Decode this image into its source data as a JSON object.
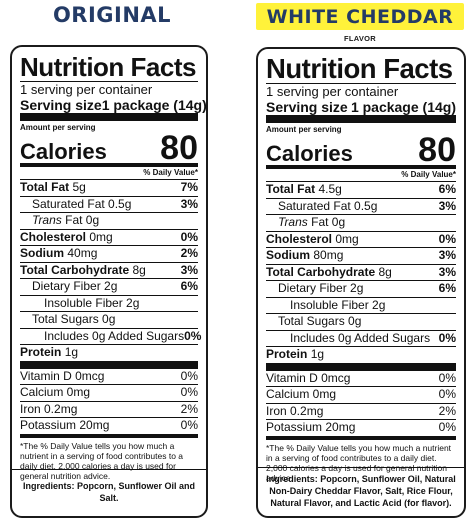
{
  "labels": [
    {
      "banner": "ORIGINAL",
      "title": "Nutrition Facts",
      "servings_line": "1 serving per container",
      "serving_size_label": "Serving size",
      "serving_size_value": "1 package (14g)",
      "amount_per_serving": "Amount per serving",
      "calories_label": "Calories",
      "calories_value": "80",
      "dv_header": "% Daily Value*",
      "total_fat_label": "Total Fat",
      "total_fat_amt": "5g",
      "total_fat_dv": "7%",
      "sat_fat_label": "Saturated Fat 0.5g",
      "sat_fat_dv": "3%",
      "trans_label": "Trans",
      "trans_rest": " Fat 0g",
      "chol_label": "Cholesterol",
      "chol_amt": "0mg",
      "chol_dv": "0%",
      "sodium_label": "Sodium",
      "sodium_amt": "40mg",
      "sodium_dv": "2%",
      "carb_label": "Total Carbohydrate",
      "carb_amt": "8g",
      "carb_dv": "3%",
      "fiber_label": "Dietary Fiber 2g",
      "fiber_dv": "6%",
      "insol_label": "Insoluble Fiber 2g",
      "sugars_label": "Total Sugars 0g",
      "added_label": "Includes 0g Added Sugars",
      "added_dv": "0%",
      "protein_label": "Protein",
      "protein_amt": "1g",
      "vitd_label": "Vitamin D 0mcg",
      "vitd_dv": "0%",
      "calcium_label": "Calcium 0mg",
      "calcium_dv": "0%",
      "iron_label": "Iron 0.2mg",
      "iron_dv": "2%",
      "potassium_label": "Potassium 20mg",
      "potassium_dv": "0%",
      "footnote": "*The % Daily Value tells you how much a nutrient in a serving of food contributes to a daily diet. 2,000 calories a day is used for general nutrition advice.",
      "ingredients": "Ingredients: Popcorn, Sunflower Oil and Salt."
    },
    {
      "banner": "WHITE CHEDDAR",
      "flavor": "FLAVOR",
      "title": "Nutrition Facts",
      "servings_line": "1 serving per container",
      "serving_size_label": "Serving size",
      "serving_size_value": "1 package (14g)",
      "amount_per_serving": "Amount per serving",
      "calories_label": "Calories",
      "calories_value": "80",
      "dv_header": "% Daily Value*",
      "total_fat_label": "Total Fat",
      "total_fat_amt": "4.5g",
      "total_fat_dv": "6%",
      "sat_fat_label": "Saturated Fat 0.5g",
      "sat_fat_dv": "3%",
      "trans_label": "Trans",
      "trans_rest": " Fat 0g",
      "chol_label": "Cholesterol",
      "chol_amt": "0mg",
      "chol_dv": "0%",
      "sodium_label": "Sodium",
      "sodium_amt": "80mg",
      "sodium_dv": "3%",
      "carb_label": "Total Carbohydrate",
      "carb_amt": "8g",
      "carb_dv": "3%",
      "fiber_label": "Dietary Fiber 2g",
      "fiber_dv": "6%",
      "insol_label": "Insoluble Fiber 2g",
      "sugars_label": "Total Sugars 0g",
      "added_label": "Includes 0g Added Sugars",
      "added_dv": "0%",
      "protein_label": "Protein",
      "protein_amt": "1g",
      "vitd_label": "Vitamin D 0mcg",
      "vitd_dv": "0%",
      "calcium_label": "Calcium 0mg",
      "calcium_dv": "0%",
      "iron_label": "Iron 0.2mg",
      "iron_dv": "2%",
      "potassium_label": "Potassium 20mg",
      "potassium_dv": "0%",
      "footnote": "*The % Daily Value tells you how much a nutrient in a serving of food contributes to a daily diet. 2,000 calories a day is used for general nutrition advice.",
      "ingredients": "Ingredients: Popcorn, Sunflower Oil, Natural Non-Dairy Cheddar Flavor, Salt, Rice Flour, Natural Flavor, and Lactic Acid (for flavor)."
    }
  ]
}
